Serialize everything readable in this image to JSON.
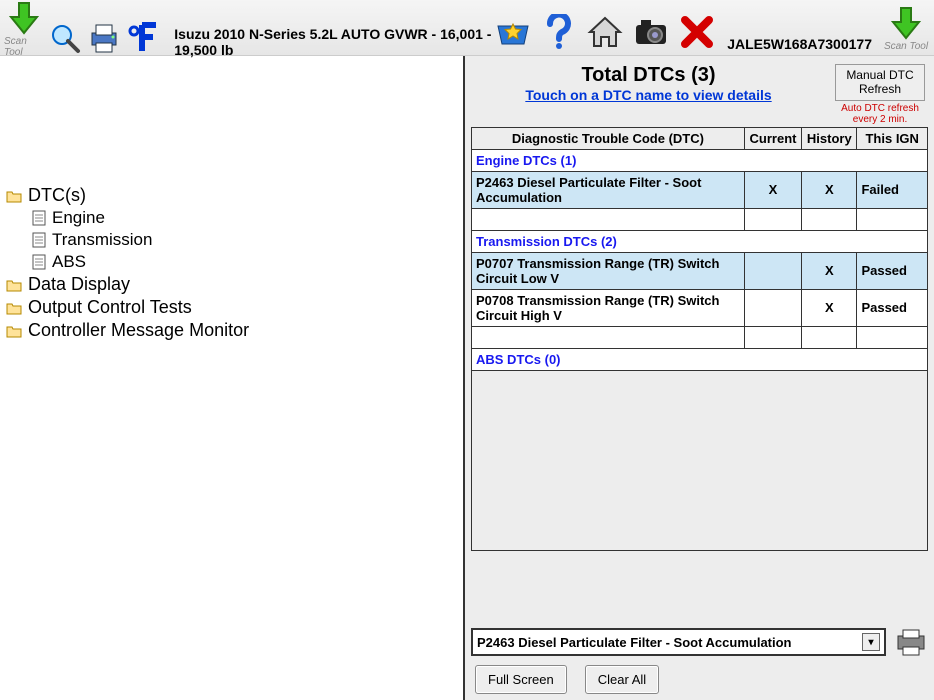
{
  "toolbar": {
    "scan_tool_label": "Scan Tool",
    "vehicle_info": "Isuzu  2010  N-Series  5.2L   AUTO GVWR - 16,001 - 19,500 lb",
    "vin": "JALE5W168A7300177"
  },
  "tree": {
    "dtcs": {
      "label": "DTC(s)",
      "children": [
        "Engine",
        "Transmission",
        "ABS"
      ]
    },
    "data_display": "Data Display",
    "output_control": "Output Control Tests",
    "controller_monitor": "Controller Message Monitor"
  },
  "dtc": {
    "title": "Total DTCs (3)",
    "subtitle": "Touch on a DTC name to view details",
    "manual_btn": "Manual DTC Refresh",
    "auto_txt": "Auto DTC refresh every 2 min.",
    "columns": {
      "code": "Diagnostic Trouble Code (DTC)",
      "current": "Current",
      "history": "History",
      "ign": "This IGN"
    },
    "groups": [
      {
        "label": "Engine DTCs (1)",
        "rows": [
          {
            "code": "P2463 Diesel Particulate Filter - Soot Accumulation",
            "current": "X",
            "history": "X",
            "ign": "Failed",
            "alt": true
          }
        ],
        "blank_after": true
      },
      {
        "label": "Transmission DTCs (2)",
        "rows": [
          {
            "code": "P0707 Transmission Range (TR) Switch Circuit Low V",
            "current": "",
            "history": "X",
            "ign": "Passed",
            "alt": true
          },
          {
            "code": "P0708 Transmission Range (TR) Switch Circuit High V",
            "current": "",
            "history": "X",
            "ign": "Passed",
            "alt": false
          }
        ],
        "blank_after": true
      },
      {
        "label": "ABS DTCs (0)",
        "rows": [],
        "blank_after": false
      }
    ],
    "selected": "P2463 Diesel Particulate Filter - Soot Accumulation",
    "full_screen": "Full Screen",
    "clear_all": "Clear All"
  }
}
